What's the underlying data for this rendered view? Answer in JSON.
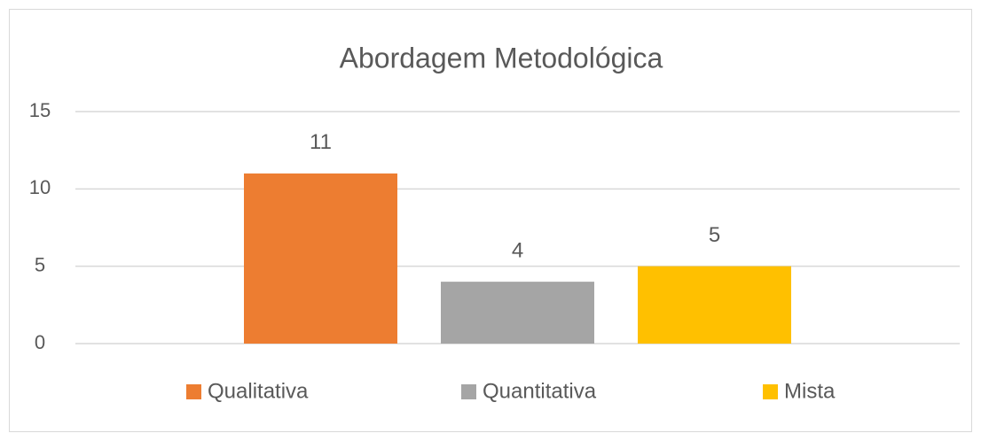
{
  "chart_data": {
    "type": "bar",
    "title": "Abordagem Metodológica",
    "categories": [
      null
    ],
    "series": [
      {
        "name": "Qualitativa",
        "color": "#ed7d31",
        "values": [
          11
        ]
      },
      {
        "name": "Quantitativa",
        "color": "#a5a5a5",
        "values": [
          4
        ]
      },
      {
        "name": "Mista",
        "color": "#ffc000",
        "values": [
          5
        ]
      }
    ],
    "ylim": [
      0,
      15
    ],
    "yticks": [
      0,
      5,
      10,
      15
    ],
    "grid": true,
    "legend": "bottom"
  }
}
